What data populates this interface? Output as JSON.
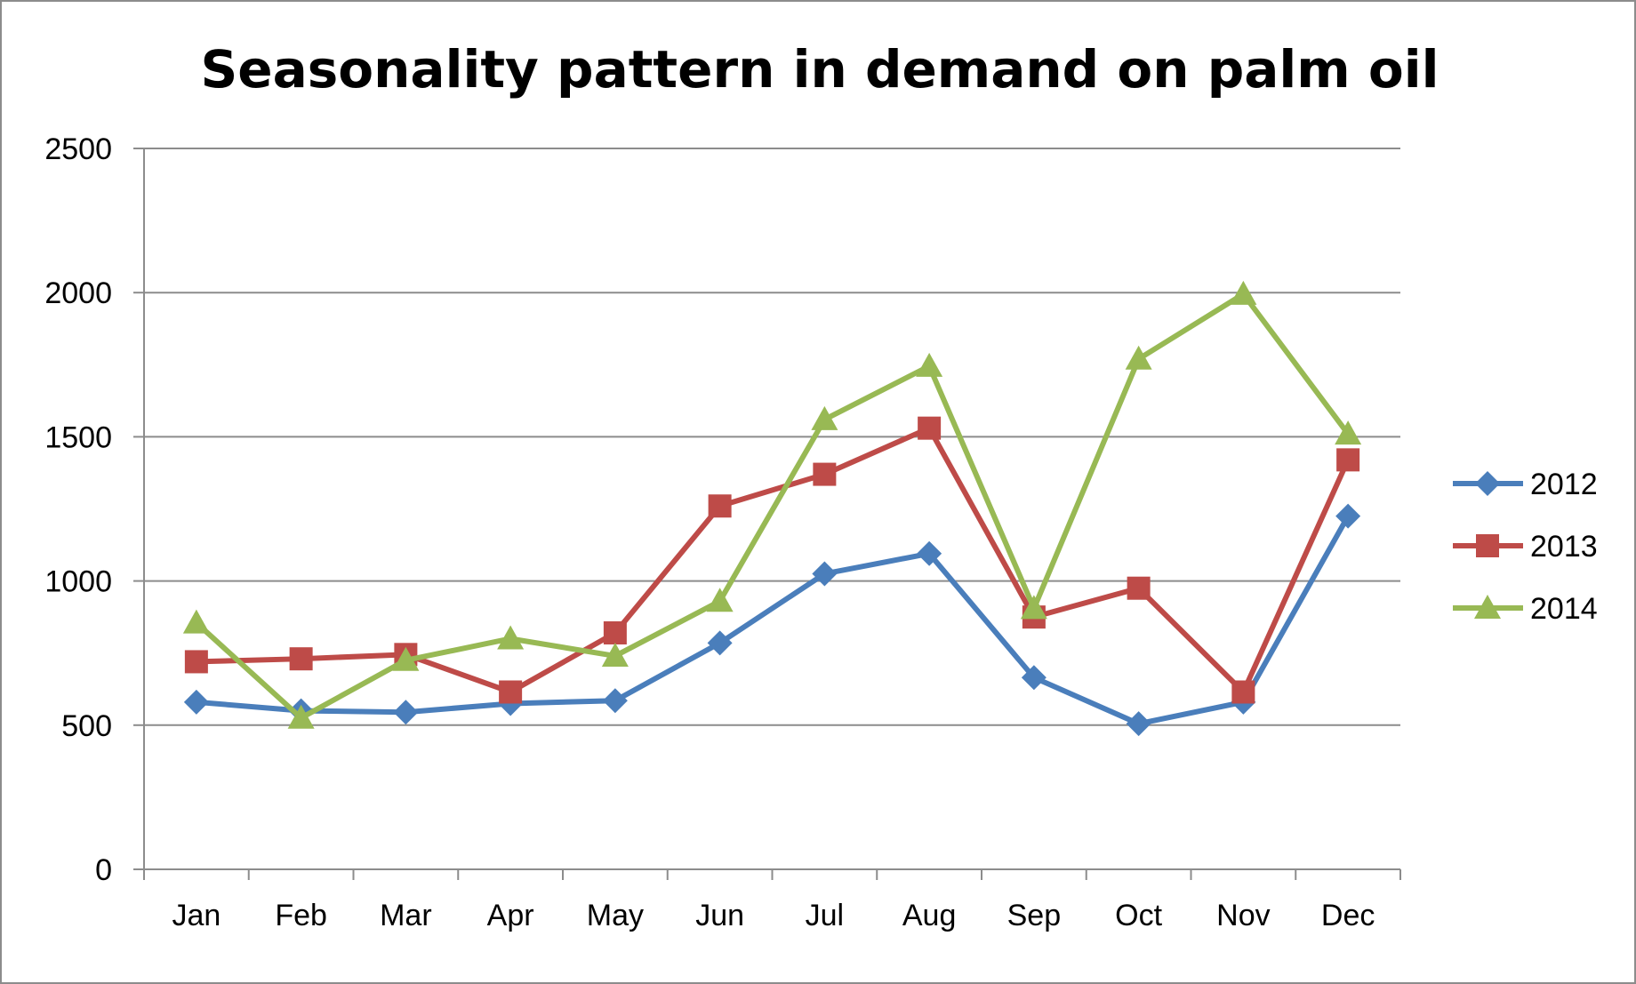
{
  "chart_data": {
    "type": "line",
    "title": "Seasonality pattern in demand on palm oil",
    "xlabel": "",
    "ylabel": "",
    "categories": [
      "Jan",
      "Feb",
      "Mar",
      "Apr",
      "May",
      "Jun",
      "Jul",
      "Aug",
      "Sep",
      "Oct",
      "Nov",
      "Dec"
    ],
    "ylim": [
      0,
      2500
    ],
    "yticks": [
      0,
      500,
      1000,
      1500,
      2000,
      2500
    ],
    "ytick_labels": [
      "0",
      "500",
      "1000",
      "1500",
      "2000",
      "2500"
    ],
    "grid": true,
    "legend_position": "right",
    "series": [
      {
        "name": "2012",
        "color": "#4a7ebb",
        "marker": "diamond",
        "values": [
          580,
          550,
          545,
          575,
          585,
          785,
          1025,
          1095,
          665,
          505,
          580,
          1225
        ]
      },
      {
        "name": "2013",
        "color": "#be4b48",
        "marker": "square",
        "values": [
          720,
          730,
          745,
          615,
          820,
          1260,
          1370,
          1530,
          875,
          975,
          615,
          1420
        ]
      },
      {
        "name": "2014",
        "color": "#98b954",
        "marker": "triangle",
        "values": [
          855,
          525,
          725,
          800,
          740,
          930,
          1560,
          1745,
          905,
          1770,
          1995,
          1510
        ]
      }
    ]
  }
}
